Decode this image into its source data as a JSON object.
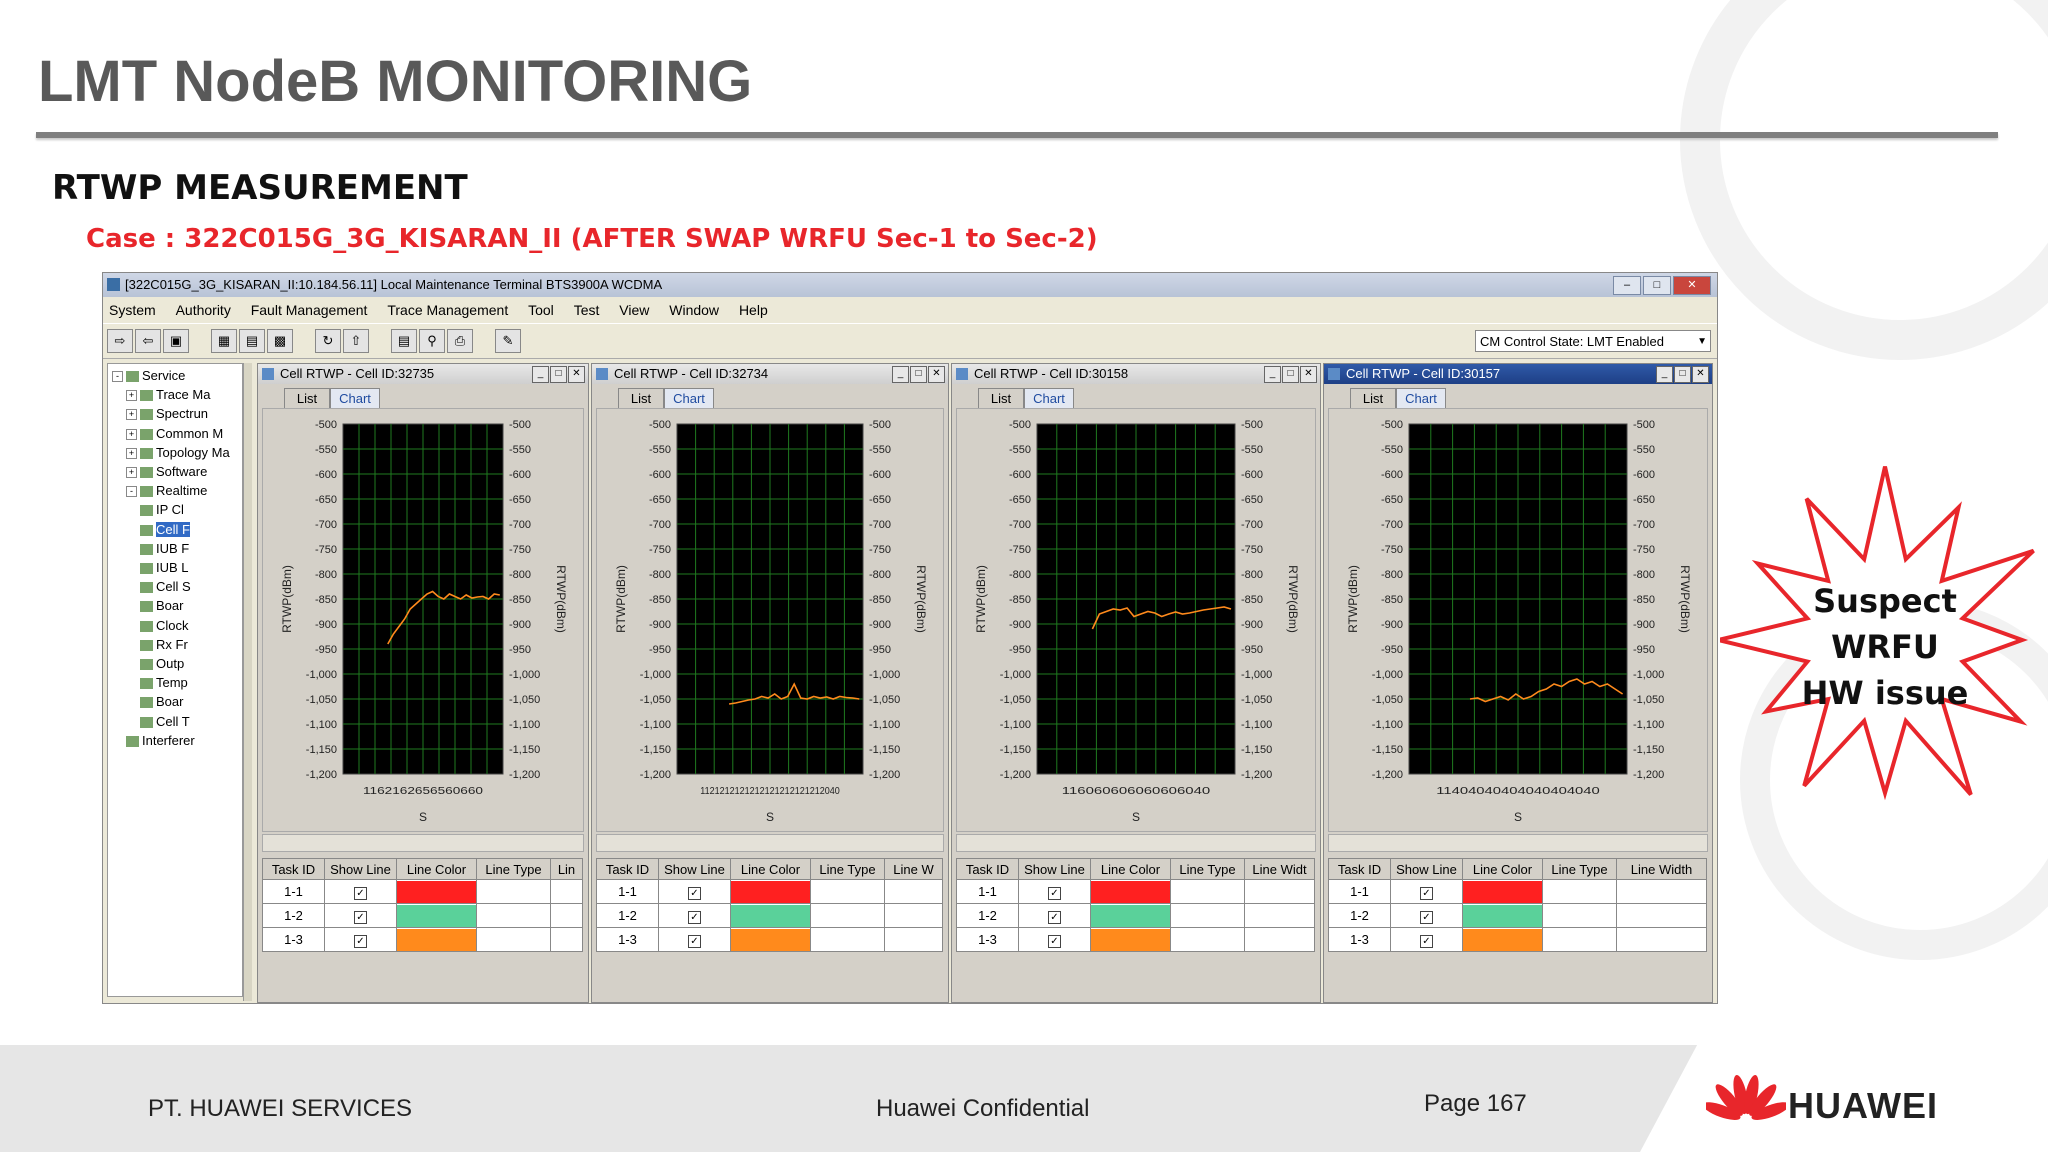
{
  "slide": {
    "title": "LMT NodeB MONITORING",
    "subtitle": "RTWP MEASUREMENT",
    "case_line": "Case : 322C015G_3G_KISARAN_II (AFTER SWAP WRFU Sec-1 to Sec-2)"
  },
  "window": {
    "title": "[322C015G_3G_KISARAN_II:10.184.56.11] Local Maintenance Terminal BTS3900A WCDMA",
    "menu": [
      "System",
      "Authority",
      "Fault Management",
      "Trace Management",
      "Tool",
      "Test",
      "View",
      "Window",
      "Help"
    ],
    "cm_state": "CM Control State: LMT Enabled"
  },
  "tree": {
    "items": [
      {
        "label": "Service",
        "level": 0,
        "expander": "-"
      },
      {
        "label": "Trace Ma",
        "level": 1,
        "expander": "+"
      },
      {
        "label": "Spectrun",
        "level": 1,
        "expander": "+"
      },
      {
        "label": "Common M",
        "level": 1,
        "expander": "+"
      },
      {
        "label": "Topology Ma",
        "level": 1,
        "expander": "+"
      },
      {
        "label": "Software",
        "level": 1,
        "expander": "+"
      },
      {
        "label": "Realtime",
        "level": 1,
        "expander": "-"
      },
      {
        "label": "IP Cl",
        "level": 2,
        "expander": ""
      },
      {
        "label": "Cell F",
        "level": 2,
        "expander": "",
        "selected": true
      },
      {
        "label": "IUB F",
        "level": 2,
        "expander": ""
      },
      {
        "label": "IUB L",
        "level": 2,
        "expander": ""
      },
      {
        "label": "Cell S",
        "level": 2,
        "expander": ""
      },
      {
        "label": "Boar",
        "level": 2,
        "expander": ""
      },
      {
        "label": "Clock",
        "level": 2,
        "expander": ""
      },
      {
        "label": "Rx Fr",
        "level": 2,
        "expander": ""
      },
      {
        "label": "Outp",
        "level": 2,
        "expander": ""
      },
      {
        "label": "Temp",
        "level": 2,
        "expander": ""
      },
      {
        "label": "Boar",
        "level": 2,
        "expander": ""
      },
      {
        "label": "Cell T",
        "level": 2,
        "expander": ""
      },
      {
        "label": "Interferer",
        "level": 1,
        "expander": ""
      }
    ]
  },
  "panels": [
    {
      "title": "Cell RTWP - Cell ID:32735",
      "active": false,
      "x_ticks": "1162162656560660",
      "columns": [
        "Task ID",
        "Show Line",
        "Line Color",
        "Line Type",
        "Lin"
      ]
    },
    {
      "title": "Cell RTWP - Cell ID:32734",
      "active": false,
      "x_ticks": "1121212121212121212121212040",
      "columns": [
        "Task ID",
        "Show Line",
        "Line Color",
        "Line Type",
        "Line W"
      ]
    },
    {
      "title": "Cell RTWP - Cell ID:30158",
      "active": false,
      "x_ticks": "116060606060606040",
      "columns": [
        "Task ID",
        "Show Line",
        "Line Color",
        "Line Type",
        "Line Widt"
      ]
    },
    {
      "title": "Cell RTWP - Cell ID:30157",
      "active": true,
      "x_ticks": "11404040404040404040",
      "columns": [
        "Task ID",
        "Show Line",
        "Line Color",
        "Line Type",
        "Line Width"
      ]
    }
  ],
  "tabs": {
    "list": "List",
    "chart": "Chart"
  },
  "axis": {
    "y_label": "RTWP(dBm)",
    "x_label": "S",
    "ticks": [
      "-500",
      "-550",
      "-600",
      "-650",
      "-700",
      "-750",
      "-800",
      "-850",
      "-900",
      "-950",
      "-1,000",
      "-1,050",
      "-1,100",
      "-1,150",
      "-1,200"
    ]
  },
  "task_rows": [
    {
      "id": "1-1",
      "color": "#ff2020"
    },
    {
      "id": "1-2",
      "color": "#5ad19a"
    },
    {
      "id": "1-3",
      "color": "#ff8a1c"
    }
  ],
  "chart_data": [
    {
      "type": "line",
      "title": "Cell RTWP - Cell ID:32735",
      "ylabel": "RTWP(dBm)",
      "xlabel": "S",
      "ylim": [
        -1200,
        -500
      ],
      "grid": true,
      "series": [
        {
          "values": [
            -940,
            -920,
            -905,
            -890,
            -870,
            -860,
            -850,
            -840,
            -835,
            -845,
            -850,
            -840,
            -845,
            -850,
            -842,
            -848,
            -846,
            -845,
            -850,
            -840,
            -842
          ]
        }
      ]
    },
    {
      "type": "line",
      "title": "Cell RTWP - Cell ID:32734",
      "ylabel": "RTWP(dBm)",
      "xlabel": "S",
      "ylim": [
        -1200,
        -500
      ],
      "grid": true,
      "series": [
        {
          "values": [
            -1060,
            -1058,
            -1055,
            -1052,
            -1050,
            -1045,
            -1048,
            -1040,
            -1050,
            -1045,
            -1020,
            -1048,
            -1050,
            -1045,
            -1048,
            -1046,
            -1050,
            -1045,
            -1047,
            -1048,
            -1050
          ]
        }
      ]
    },
    {
      "type": "line",
      "title": "Cell RTWP - Cell ID:30158",
      "ylabel": "RTWP(dBm)",
      "xlabel": "S",
      "ylim": [
        -1200,
        -500
      ],
      "grid": true,
      "series": [
        {
          "values": [
            -910,
            -880,
            -875,
            -870,
            -872,
            -868,
            -885,
            -880,
            -875,
            -878,
            -885,
            -880,
            -876,
            -880,
            -878,
            -875,
            -872,
            -870,
            -868,
            -866,
            -870
          ]
        }
      ]
    },
    {
      "type": "line",
      "title": "Cell RTWP - Cell ID:30157",
      "ylabel": "RTWP(dBm)",
      "xlabel": "S",
      "ylim": [
        -1200,
        -500
      ],
      "grid": true,
      "series": [
        {
          "values": [
            -1050,
            -1048,
            -1055,
            -1050,
            -1045,
            -1052,
            -1040,
            -1050,
            -1045,
            -1035,
            -1030,
            -1020,
            -1025,
            -1015,
            -1010,
            -1020,
            -1015,
            -1025,
            -1020,
            -1030,
            -1040
          ]
        }
      ]
    }
  ],
  "callout": {
    "text": [
      "Suspect",
      "WRFU",
      "HW issue"
    ],
    "color": "#e8262b"
  },
  "footer": {
    "company": "PT. HUAWEI SERVICES",
    "confidential": "Huawei Confidential",
    "page": "Page 167",
    "brand": "HUAWEI",
    "logo_color": "#e8262b"
  }
}
